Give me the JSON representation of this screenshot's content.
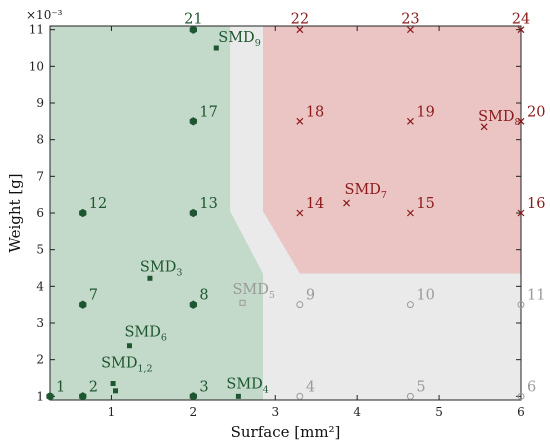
{
  "chart_data": {
    "type": "scatter",
    "xlabel": "Surface [mm²]",
    "ylabel": "Weight [g]",
    "y_multiplier": "×10⁻³",
    "xlim": [
      0.25,
      6
    ],
    "ylim": [
      0.9,
      11.1
    ],
    "xticks": [
      "1",
      "2",
      "3",
      "4",
      "5",
      "6"
    ],
    "yticks": [
      "1",
      "2",
      "3",
      "4",
      "5",
      "6",
      "7",
      "8",
      "9",
      "10",
      "11"
    ],
    "grid": false,
    "regions": [
      {
        "name": "green",
        "color": "#7bab87",
        "opacity": 0.45,
        "polygon": [
          [
            0.25,
            0.9
          ],
          [
            2.85,
            0.9
          ],
          [
            2.85,
            4.35
          ],
          [
            2.45,
            6.05
          ],
          [
            2.45,
            11.1
          ],
          [
            0.25,
            11.1
          ]
        ]
      },
      {
        "name": "gray",
        "color": "#d6d6d6",
        "opacity": 0.5,
        "polygon": [
          [
            2.85,
            0.9
          ],
          [
            6,
            0.9
          ],
          [
            6,
            4.35
          ],
          [
            3.3,
            4.35
          ],
          [
            2.85,
            6.05
          ],
          [
            2.85,
            11.1
          ],
          [
            2.45,
            11.1
          ],
          [
            2.45,
            6.05
          ],
          [
            2.85,
            4.35
          ]
        ]
      },
      {
        "name": "red",
        "color": "#d88a8a",
        "opacity": 0.5,
        "polygon": [
          [
            2.85,
            11.1
          ],
          [
            6,
            11.1
          ],
          [
            6,
            4.35
          ],
          [
            3.3,
            4.35
          ],
          [
            2.85,
            6.05
          ]
        ]
      }
    ],
    "points": [
      {
        "label": "1",
        "x": 0.25,
        "y": 1,
        "marker": "hexagon",
        "color": "#1e5631"
      },
      {
        "label": "2",
        "x": 0.65,
        "y": 1,
        "marker": "hexagon",
        "color": "#1e5631"
      },
      {
        "label": "3",
        "x": 2,
        "y": 1,
        "marker": "hexagon",
        "color": "#1e5631"
      },
      {
        "label": "4",
        "x": 3.3,
        "y": 1,
        "marker": "circle",
        "color": "#9a9a9a"
      },
      {
        "label": "5",
        "x": 4.65,
        "y": 1,
        "marker": "circle",
        "color": "#9a9a9a"
      },
      {
        "label": "6",
        "x": 6,
        "y": 1,
        "marker": "circle",
        "color": "#9a9a9a"
      },
      {
        "label": "7",
        "x": 0.65,
        "y": 3.5,
        "marker": "hexagon",
        "color": "#1e5631"
      },
      {
        "label": "8",
        "x": 2,
        "y": 3.5,
        "marker": "hexagon",
        "color": "#1e5631"
      },
      {
        "label": "9",
        "x": 3.3,
        "y": 3.5,
        "marker": "circle",
        "color": "#9a9a9a"
      },
      {
        "label": "10",
        "x": 4.65,
        "y": 3.5,
        "marker": "circle",
        "color": "#9a9a9a"
      },
      {
        "label": "11",
        "x": 6,
        "y": 3.5,
        "marker": "circle",
        "color": "#9a9a9a"
      },
      {
        "label": "12",
        "x": 0.65,
        "y": 6,
        "marker": "hexagon",
        "color": "#1e5631"
      },
      {
        "label": "13",
        "x": 2,
        "y": 6,
        "marker": "hexagon",
        "color": "#1e5631"
      },
      {
        "label": "14",
        "x": 3.3,
        "y": 6,
        "marker": "cross",
        "color": "#8b1a1a"
      },
      {
        "label": "15",
        "x": 4.65,
        "y": 6,
        "marker": "cross",
        "color": "#8b1a1a"
      },
      {
        "label": "16",
        "x": 6,
        "y": 6,
        "marker": "cross",
        "color": "#8b1a1a"
      },
      {
        "label": "17",
        "x": 2,
        "y": 8.5,
        "marker": "hexagon",
        "color": "#1e5631"
      },
      {
        "label": "18",
        "x": 3.3,
        "y": 8.5,
        "marker": "cross",
        "color": "#8b1a1a"
      },
      {
        "label": "19",
        "x": 4.65,
        "y": 8.5,
        "marker": "cross",
        "color": "#8b1a1a"
      },
      {
        "label": "20",
        "x": 6,
        "y": 8.5,
        "marker": "cross",
        "color": "#8b1a1a"
      },
      {
        "label": "21",
        "x": 2,
        "y": 11,
        "marker": "hexagon",
        "color": "#1e5631"
      },
      {
        "label": "22",
        "x": 3.3,
        "y": 11,
        "marker": "cross",
        "color": "#8b1a1a"
      },
      {
        "label": "23",
        "x": 4.65,
        "y": 11,
        "marker": "cross",
        "color": "#8b1a1a"
      },
      {
        "label": "24",
        "x": 6,
        "y": 11,
        "marker": "cross",
        "color": "#8b1a1a"
      }
    ],
    "smd_points": [
      {
        "label": "SMD",
        "sub": "1,2",
        "points": [
          [
            1.02,
            1.35
          ],
          [
            1.05,
            1.15
          ]
        ],
        "marker": "square",
        "color": "#1e5631"
      },
      {
        "label": "SMD",
        "sub": "3",
        "points": [
          [
            1.47,
            4.22
          ]
        ],
        "marker": "square",
        "color": "#1e5631"
      },
      {
        "label": "SMD",
        "sub": "4",
        "points": [
          [
            2.55,
            1.0
          ]
        ],
        "marker": "square",
        "color": "#1e5631"
      },
      {
        "label": "SMD",
        "sub": "5",
        "points": [
          [
            2.6,
            3.55
          ]
        ],
        "marker": "square-open",
        "color": "#9a9a9a"
      },
      {
        "label": "SMD",
        "sub": "6",
        "points": [
          [
            1.22,
            2.38
          ]
        ],
        "marker": "square",
        "color": "#1e5631"
      },
      {
        "label": "SMD",
        "sub": "7",
        "points": [
          [
            3.87,
            6.27
          ]
        ],
        "marker": "cross",
        "color": "#8b1a1a"
      },
      {
        "label": "SMD",
        "sub": "8",
        "points": [
          [
            5.55,
            8.35
          ]
        ],
        "marker": "cross",
        "color": "#8b1a1a"
      },
      {
        "label": "SMD",
        "sub": "9",
        "points": [
          [
            2.28,
            10.5
          ]
        ],
        "marker": "square",
        "color": "#1e5631"
      }
    ]
  }
}
